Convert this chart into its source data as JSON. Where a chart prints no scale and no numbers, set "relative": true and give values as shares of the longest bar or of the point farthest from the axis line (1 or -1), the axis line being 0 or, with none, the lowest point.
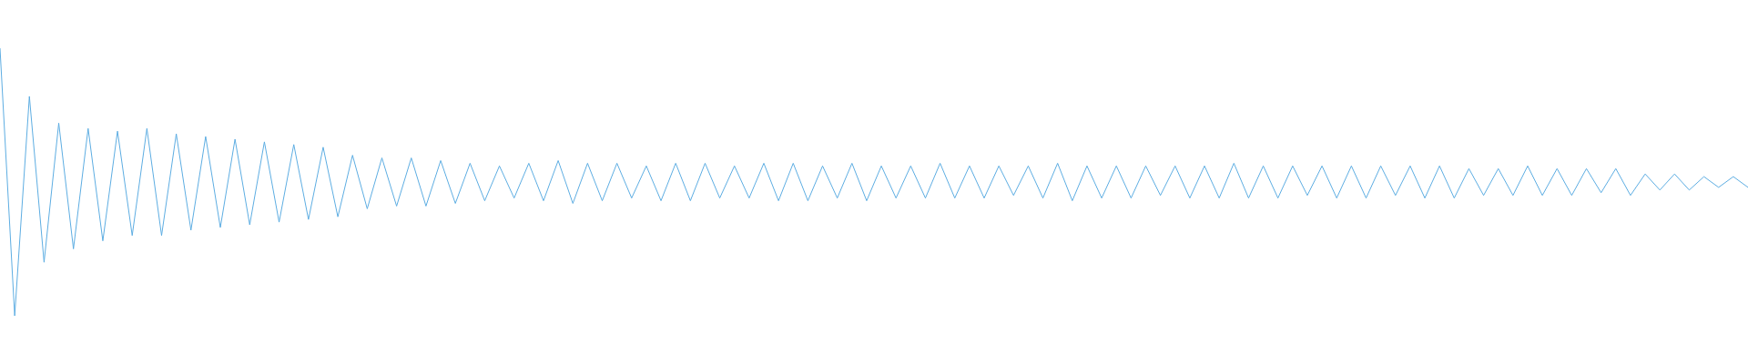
{
  "chart_data": {
    "type": "line",
    "relative": true,
    "legend": false,
    "marker": "none",
    "line_style": "solid",
    "categories": [
      null,
      null,
      null,
      null,
      null,
      null,
      null,
      null,
      null,
      null,
      null,
      null,
      null,
      null,
      null,
      null,
      null,
      null,
      null,
      null,
      null,
      null,
      null,
      null,
      null,
      null,
      null,
      null,
      null,
      null,
      null,
      null,
      null,
      null,
      null,
      null,
      null,
      null,
      null,
      null,
      null,
      null,
      null,
      null,
      null,
      null,
      null,
      null,
      null,
      null,
      null,
      null,
      null,
      null,
      null,
      null,
      null,
      null,
      null,
      null,
      null,
      null,
      null,
      null,
      null,
      null,
      null,
      null,
      null,
      null,
      null,
      null,
      null,
      null,
      null,
      null,
      null,
      null,
      null,
      null,
      null,
      null,
      null,
      null,
      null,
      null,
      null,
      null,
      null,
      null,
      null,
      null,
      null,
      null,
      null,
      null,
      null,
      null,
      null,
      null,
      null,
      null,
      null,
      null,
      null,
      null,
      null,
      null,
      null,
      null,
      null,
      null,
      null,
      null,
      null,
      null,
      null,
      null,
      null,
      null
    ],
    "series": [
      {
        "color": "#5dade2",
        "values": [
          1.0,
          0.0,
          0.82,
          0.2,
          0.72,
          0.25,
          0.7,
          0.28,
          0.69,
          0.3,
          0.7,
          0.3,
          0.68,
          0.32,
          0.67,
          0.33,
          0.66,
          0.34,
          0.65,
          0.35,
          0.64,
          0.36,
          0.63,
          0.37,
          0.6,
          0.4,
          0.59,
          0.41,
          0.59,
          0.41,
          0.58,
          0.42,
          0.57,
          0.43,
          0.56,
          0.44,
          0.57,
          0.43,
          0.58,
          0.42,
          0.57,
          0.43,
          0.57,
          0.44,
          0.56,
          0.43,
          0.57,
          0.43,
          0.57,
          0.44,
          0.56,
          0.44,
          0.57,
          0.43,
          0.57,
          0.43,
          0.56,
          0.44,
          0.57,
          0.43,
          0.56,
          0.44,
          0.56,
          0.44,
          0.57,
          0.44,
          0.56,
          0.44,
          0.56,
          0.45,
          0.56,
          0.44,
          0.57,
          0.43,
          0.56,
          0.44,
          0.56,
          0.44,
          0.56,
          0.45,
          0.56,
          0.44,
          0.56,
          0.44,
          0.57,
          0.44,
          0.56,
          0.44,
          0.56,
          0.45,
          0.56,
          0.44,
          0.56,
          0.44,
          0.56,
          0.45,
          0.56,
          0.44,
          0.56,
          0.44,
          0.55,
          0.45,
          0.55,
          0.45,
          0.56,
          0.45,
          0.55,
          0.45,
          0.55,
          0.46,
          0.55,
          0.45,
          0.53,
          0.47,
          0.53,
          0.47,
          0.52,
          0.48,
          0.52,
          0.48
        ]
      }
    ]
  }
}
